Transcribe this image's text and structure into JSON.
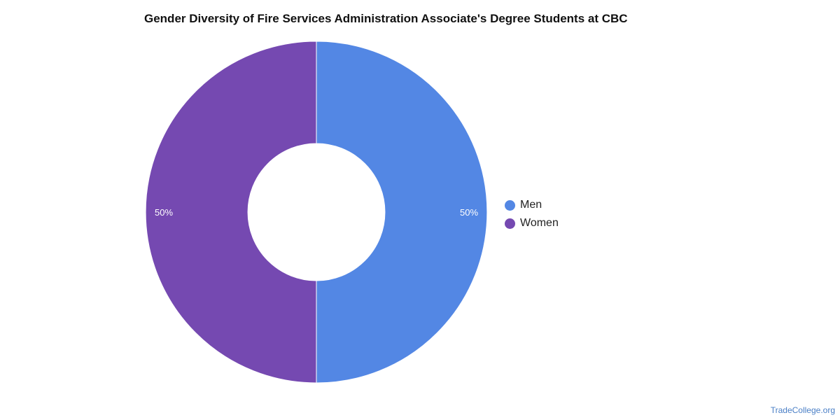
{
  "chart_data": {
    "type": "pie",
    "title": "Gender Diversity of Fire Services Administration Associate's Degree Students at CBC",
    "donut": true,
    "categories": [
      "Men",
      "Women"
    ],
    "values": [
      50,
      50
    ],
    "data_labels": [
      "50%",
      "50%"
    ],
    "colors": [
      "#5387e4",
      "#7549b1"
    ],
    "legend_position": "right"
  },
  "watermark": "TradeCollege.org"
}
